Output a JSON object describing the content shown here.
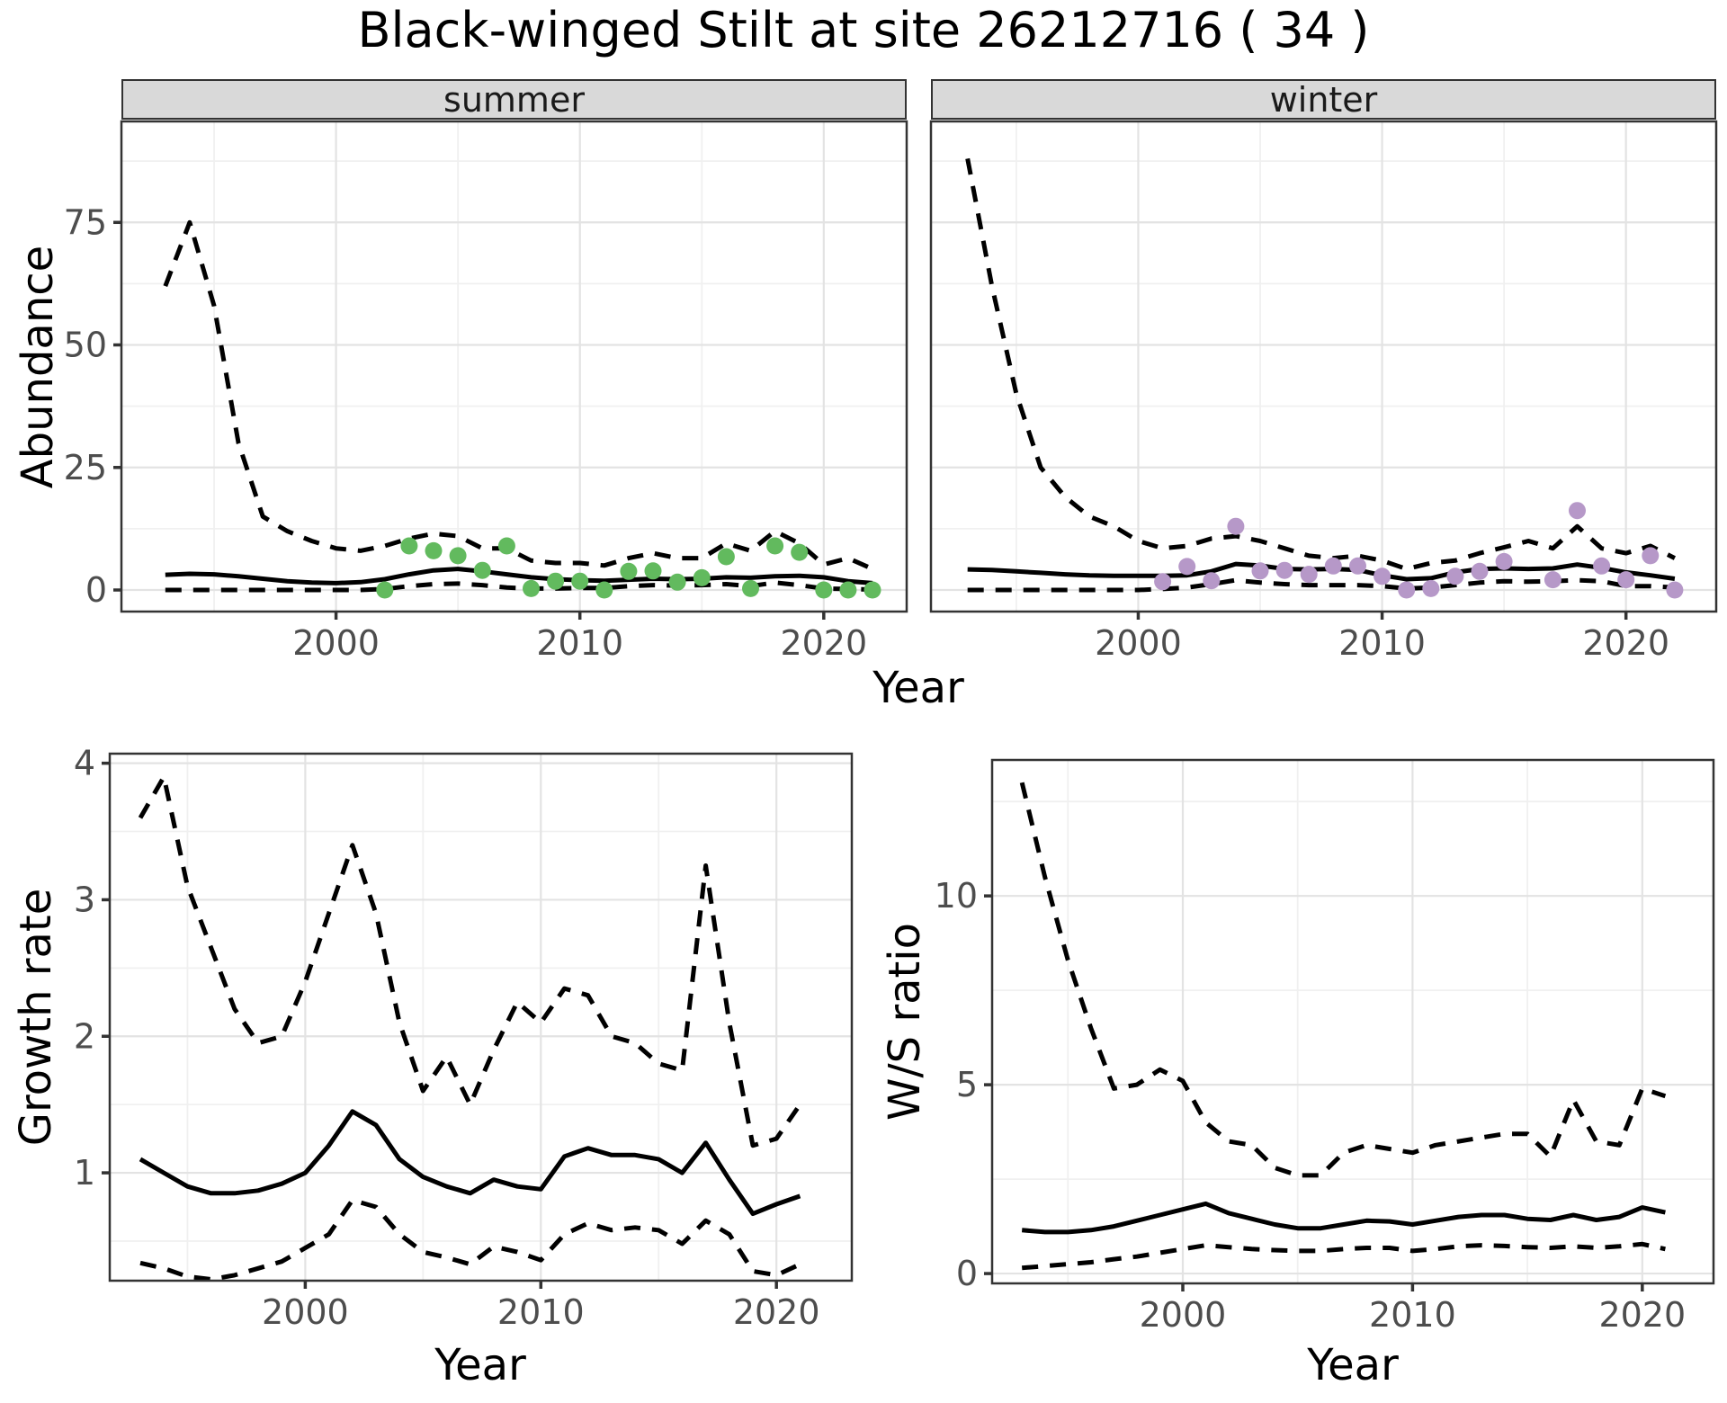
{
  "title": "Black-winged Stilt at site 26212716 ( 34 )",
  "colors": {
    "summer_point": "#62ba5e",
    "winter_point": "#b698c8",
    "line": "#000000",
    "axis_text": "#4d4d4d",
    "tick_mark": "#333333",
    "panel_border": "#333333",
    "strip_bg": "#d9d9d9",
    "grid_major": "#e3e3e3",
    "grid_minor": "#f0f0f0"
  },
  "chart_data": [
    {
      "id": "abundance-summer",
      "type": "line",
      "strip": "summer",
      "ylabel": "Abundance",
      "xlabel": "Year",
      "x_ticks": [
        2000,
        2010,
        2020
      ],
      "y_ticks": [
        0,
        25,
        50,
        75
      ],
      "xlim": [
        1991.2,
        2023.4
      ],
      "ylim": [
        -4.4,
        95.6
      ],
      "grid": true,
      "legend": "none",
      "years": [
        1993,
        1994,
        1995,
        1996,
        1997,
        1998,
        1999,
        2000,
        2001,
        2002,
        2003,
        2004,
        2005,
        2006,
        2007,
        2008,
        2009,
        2010,
        2011,
        2012,
        2013,
        2014,
        2015,
        2016,
        2017,
        2018,
        2019,
        2020,
        2021,
        2022
      ],
      "series": [
        {
          "name": "mean",
          "style": "solid",
          "values": [
            3.1,
            3.3,
            3.2,
            2.8,
            2.3,
            1.8,
            1.5,
            1.4,
            1.6,
            2.2,
            3.2,
            4.0,
            4.3,
            3.8,
            3.2,
            2.6,
            2.2,
            2.0,
            1.9,
            2.1,
            2.3,
            2.2,
            2.3,
            2.6,
            2.5,
            2.8,
            2.9,
            2.6,
            1.8,
            1.4
          ]
        },
        {
          "name": "upper_ci",
          "style": "dashed",
          "values": [
            62,
            75,
            58,
            30,
            15,
            12,
            10,
            8.5,
            8,
            9,
            10.5,
            11.5,
            11,
            8.5,
            8.5,
            6,
            5.5,
            5.5,
            5,
            6.5,
            7.5,
            6.5,
            6.5,
            9.5,
            8,
            12,
            9.5,
            5.2,
            6.5,
            4.3
          ]
        },
        {
          "name": "lower_ci",
          "style": "dashed",
          "values": [
            0,
            0,
            0,
            0,
            0,
            0,
            0,
            0,
            0,
            0.2,
            0.8,
            1.2,
            1.3,
            1.0,
            0.5,
            0.3,
            0.3,
            0.4,
            0.4,
            0.8,
            1.0,
            0.9,
            1.0,
            1.2,
            0.8,
            1.5,
            1.0,
            0.3,
            0.2,
            0.1
          ]
        }
      ],
      "points": {
        "name": "observed-counts-summer",
        "color_key": "summer_point",
        "x": [
          2002,
          2003,
          2004,
          2005,
          2006,
          2007,
          2008,
          2009,
          2010,
          2011,
          2012,
          2013,
          2014,
          2015,
          2016,
          2017,
          2018,
          2019,
          2020,
          2021,
          2022
        ],
        "y": [
          0,
          9,
          8,
          7,
          4,
          9,
          0.3,
          1.8,
          1.8,
          0,
          3.8,
          3.9,
          1.6,
          2.5,
          6.8,
          0.3,
          9,
          7.7,
          0,
          0,
          0
        ]
      }
    },
    {
      "id": "abundance-winter",
      "type": "line",
      "strip": "winter",
      "ylabel": "Abundance",
      "xlabel": "Year",
      "x_ticks": [
        2000,
        2010,
        2020
      ],
      "y_ticks": [
        0,
        25,
        50,
        75
      ],
      "xlim": [
        1991.5,
        2023.7
      ],
      "ylim": [
        -4.4,
        95.6
      ],
      "grid": true,
      "legend": "none",
      "years": [
        1993,
        1994,
        1995,
        1996,
        1997,
        1998,
        1999,
        2000,
        2001,
        2002,
        2003,
        2004,
        2005,
        2006,
        2007,
        2008,
        2009,
        2010,
        2011,
        2012,
        2013,
        2014,
        2015,
        2016,
        2017,
        2018,
        2019,
        2020,
        2021,
        2022
      ],
      "series": [
        {
          "name": "mean",
          "style": "solid",
          "values": [
            4.2,
            4.1,
            3.8,
            3.5,
            3.2,
            3.0,
            2.9,
            2.9,
            2.9,
            3.0,
            3.8,
            5.3,
            5.0,
            4.3,
            4.2,
            4.3,
            4.1,
            3.0,
            2.2,
            2.4,
            3.6,
            4.3,
            4.4,
            4.3,
            4.4,
            5.2,
            4.5,
            3.6,
            3.0,
            2.3
          ]
        },
        {
          "name": "upper_ci",
          "style": "dashed",
          "values": [
            88,
            62,
            40,
            25,
            19,
            15,
            13,
            10,
            8.5,
            9,
            10.5,
            11,
            10,
            8.5,
            7,
            6.5,
            7,
            6,
            4.3,
            5.5,
            6,
            7.5,
            8.7,
            10,
            8.5,
            13,
            8.5,
            7.5,
            9,
            6.5
          ]
        },
        {
          "name": "lower_ci",
          "style": "dashed",
          "values": [
            0,
            0,
            0,
            0,
            0,
            0,
            0,
            0,
            0.2,
            0.5,
            1.2,
            2.0,
            1.5,
            1.2,
            1.0,
            1.0,
            1.0,
            0.8,
            0.3,
            0.5,
            1.0,
            1.5,
            1.8,
            1.7,
            1.8,
            2.0,
            1.8,
            0.8,
            0.8,
            0.5
          ]
        }
      ],
      "points": {
        "name": "observed-counts-winter",
        "color_key": "winter_point",
        "x": [
          2001,
          2002,
          2003,
          2004,
          2005,
          2006,
          2007,
          2008,
          2009,
          2010,
          2011,
          2012,
          2013,
          2014,
          2015,
          2017,
          2018,
          2019,
          2020,
          2021,
          2022
        ],
        "y": [
          1.7,
          4.8,
          1.9,
          13,
          3.9,
          4,
          3.2,
          4.9,
          4.9,
          2.8,
          0,
          0.3,
          2.8,
          3.8,
          5.8,
          2.1,
          16.2,
          4.9,
          2.1,
          7,
          0
        ]
      }
    },
    {
      "id": "growth-rate",
      "type": "line",
      "strip": "",
      "ylabel": "Growth rate",
      "xlabel": "Year",
      "x_ticks": [
        2000,
        2010,
        2020
      ],
      "y_ticks": [
        1,
        2,
        3,
        4
      ],
      "xlim": [
        1991.7,
        2023.2
      ],
      "ylim": [
        0.21,
        4.07
      ],
      "grid": true,
      "legend": "none",
      "years": [
        1993,
        1994,
        1995,
        1996,
        1997,
        1998,
        1999,
        2000,
        2001,
        2002,
        2003,
        2004,
        2005,
        2006,
        2007,
        2008,
        2009,
        2010,
        2011,
        2012,
        2013,
        2014,
        2015,
        2016,
        2017,
        2018,
        2019,
        2020,
        2021
      ],
      "series": [
        {
          "name": "mean",
          "style": "solid",
          "values": [
            1.1,
            1.0,
            0.9,
            0.85,
            0.85,
            0.87,
            0.92,
            1.0,
            1.2,
            1.45,
            1.35,
            1.1,
            0.97,
            0.9,
            0.85,
            0.95,
            0.9,
            0.88,
            1.12,
            1.18,
            1.13,
            1.13,
            1.1,
            1.0,
            1.22,
            0.95,
            0.7,
            0.77,
            0.83
          ]
        },
        {
          "name": "upper_ci",
          "style": "dashed",
          "values": [
            3.6,
            3.9,
            3.1,
            2.65,
            2.2,
            1.95,
            2.0,
            2.4,
            2.9,
            3.4,
            2.9,
            2.1,
            1.6,
            1.85,
            1.5,
            1.9,
            2.25,
            2.1,
            2.35,
            2.3,
            2.0,
            1.95,
            1.8,
            1.75,
            3.25,
            2.1,
            1.2,
            1.25,
            1.5
          ]
        },
        {
          "name": "lower_ci",
          "style": "dashed",
          "values": [
            0.34,
            0.3,
            0.24,
            0.22,
            0.25,
            0.3,
            0.35,
            0.45,
            0.55,
            0.8,
            0.75,
            0.55,
            0.42,
            0.38,
            0.33,
            0.46,
            0.42,
            0.36,
            0.55,
            0.63,
            0.58,
            0.6,
            0.58,
            0.48,
            0.65,
            0.55,
            0.28,
            0.25,
            0.33
          ]
        }
      ],
      "points": null
    },
    {
      "id": "ws-ratio",
      "type": "line",
      "strip": "",
      "ylabel": "W/S ratio",
      "xlabel": "Year",
      "x_ticks": [
        2000,
        2010,
        2020
      ],
      "y_ticks": [
        0,
        5,
        10
      ],
      "xlim": [
        1991.7,
        2023.1
      ],
      "ylim": [
        -0.26,
        13.6
      ],
      "grid": true,
      "legend": "none",
      "years": [
        1993,
        1994,
        1995,
        1996,
        1997,
        1998,
        1999,
        2000,
        2001,
        2002,
        2003,
        2004,
        2005,
        2006,
        2007,
        2008,
        2009,
        2010,
        2011,
        2012,
        2013,
        2014,
        2015,
        2016,
        2017,
        2018,
        2019,
        2020,
        2021
      ],
      "series": [
        {
          "name": "mean",
          "style": "solid",
          "values": [
            1.15,
            1.1,
            1.1,
            1.15,
            1.25,
            1.4,
            1.55,
            1.7,
            1.85,
            1.6,
            1.45,
            1.3,
            1.2,
            1.2,
            1.3,
            1.4,
            1.38,
            1.3,
            1.4,
            1.5,
            1.55,
            1.55,
            1.45,
            1.42,
            1.55,
            1.42,
            1.5,
            1.75,
            1.62
          ]
        },
        {
          "name": "upper_ci",
          "style": "dashed",
          "values": [
            13,
            10.5,
            8.3,
            6.5,
            4.9,
            5.0,
            5.4,
            5.1,
            4.0,
            3.5,
            3.4,
            2.8,
            2.6,
            2.6,
            3.2,
            3.4,
            3.3,
            3.2,
            3.4,
            3.5,
            3.6,
            3.7,
            3.7,
            3.1,
            4.6,
            3.5,
            3.4,
            4.9,
            4.7
          ]
        },
        {
          "name": "lower_ci",
          "style": "dashed",
          "values": [
            0.15,
            0.2,
            0.25,
            0.3,
            0.38,
            0.45,
            0.55,
            0.65,
            0.75,
            0.7,
            0.65,
            0.62,
            0.6,
            0.6,
            0.65,
            0.68,
            0.68,
            0.6,
            0.65,
            0.72,
            0.75,
            0.73,
            0.7,
            0.68,
            0.72,
            0.68,
            0.72,
            0.78,
            0.65
          ]
        }
      ],
      "points": null
    }
  ]
}
